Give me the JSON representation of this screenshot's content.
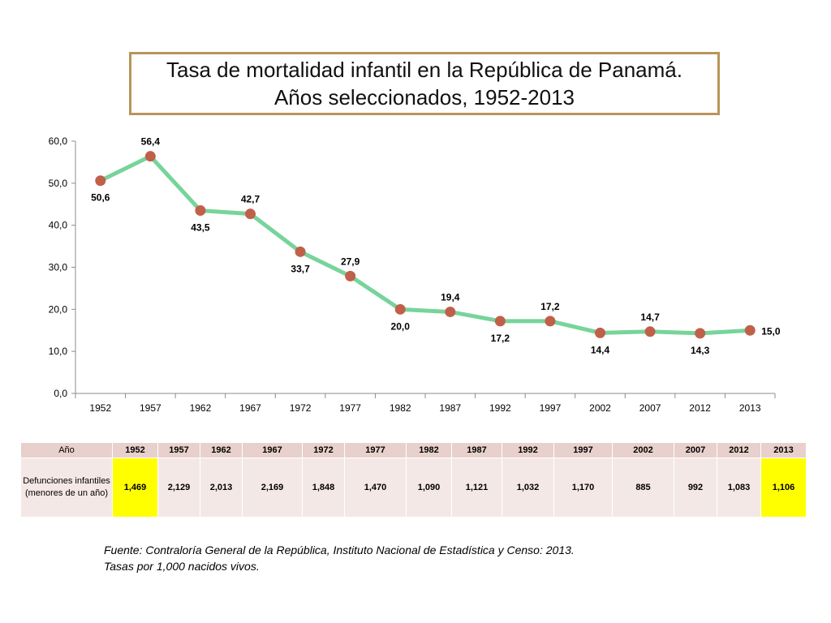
{
  "title": {
    "line1": "Tasa de mortalidad infantil en la República de Panamá.",
    "line2": "Años seleccionados, 1952-2013"
  },
  "chart_data": {
    "type": "line",
    "categories": [
      "1952",
      "1957",
      "1962",
      "1967",
      "1972",
      "1977",
      "1982",
      "1987",
      "1992",
      "1997",
      "2002",
      "2007",
      "2012",
      "2013"
    ],
    "series": [
      {
        "values": [
          50.6,
          56.4,
          43.5,
          42.7,
          33.7,
          27.9,
          20.0,
          19.4,
          17.2,
          17.2,
          14.4,
          14.7,
          14.3,
          15.0
        ],
        "labels": [
          "50,6",
          "56,4",
          "43,5",
          "42,7",
          "33,7",
          "27,9",
          "20,0",
          "19,4",
          "17,2",
          "17,2",
          "14,4",
          "14,7",
          "14,3",
          "15,0"
        ],
        "line_color": "#77d49a",
        "marker_color": "#c0604a"
      }
    ],
    "label_positions": [
      "below",
      "above",
      "below",
      "above",
      "below",
      "above",
      "below",
      "above",
      "below",
      "above",
      "below",
      "above",
      "below",
      "right"
    ],
    "y_ticks": [
      "0,0",
      "10,0",
      "20,0",
      "30,0",
      "40,0",
      "50,0",
      "60,0"
    ],
    "ylim": [
      0,
      60
    ],
    "grid": false,
    "legend": "none"
  },
  "table": {
    "row1_label": "Año",
    "row2_label": "Defunciones infantiles (menores de un año)",
    "years": [
      "1952",
      "1957",
      "1962",
      "1967",
      "1972",
      "1977",
      "1982",
      "1987",
      "1992",
      "1997",
      "2002",
      "2007",
      "2012",
      "2013"
    ],
    "deaths": [
      "1,469",
      "2,129",
      "2,013",
      "2,169",
      "1,848",
      "1,470",
      "1,090",
      "1,121",
      "1,032",
      "1,170",
      "885",
      "992",
      "1,083",
      "1,106"
    ],
    "highlight_color": "#ffff00"
  },
  "source": {
    "line1": "Fuente: Contraloría General de la República, Instituto Nacional de Estadística y Censo: 2013.",
    "line2": "Tasas por 1,000 nacidos vivos."
  }
}
